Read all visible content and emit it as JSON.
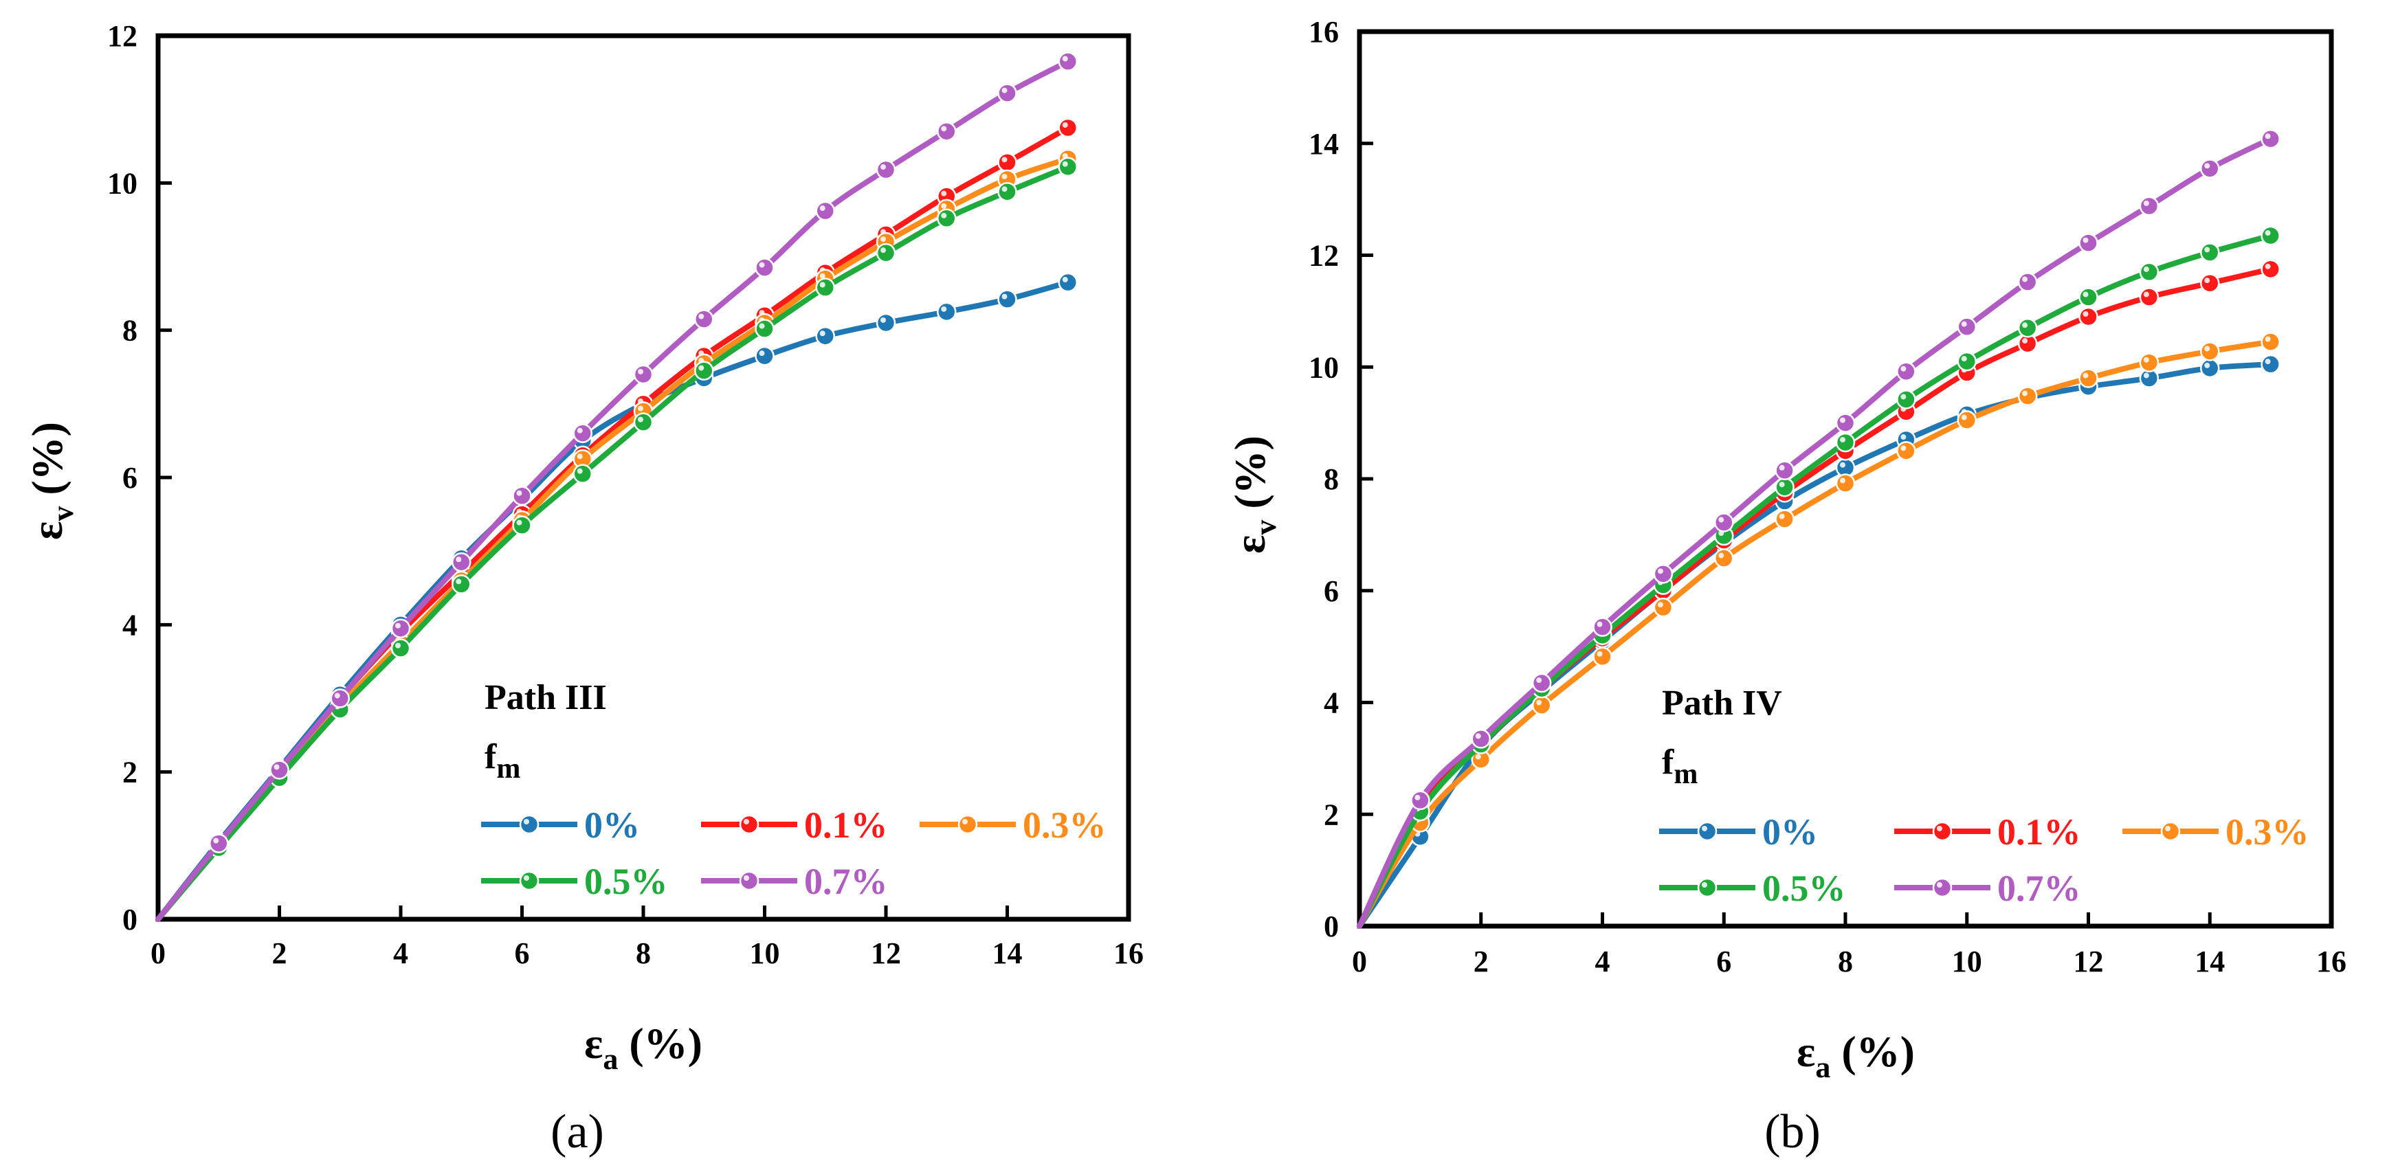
{
  "colors": {
    "s0": "#1f77b4",
    "s01": "#ff1a1a",
    "s03": "#ff8c1a",
    "s05": "#1fab3c",
    "s07": "#b05cc2"
  },
  "chart_data": [
    {
      "type": "line",
      "panel_label": "(a)",
      "title": "",
      "legend_title": "Path III",
      "legend_subtitle_base": "f",
      "legend_subtitle_sub": "m",
      "xlabel_base": "ε",
      "xlabel_sub": "a",
      "xlabel_unit": "(%)",
      "ylabel_base": "ε",
      "ylabel_sub": "v",
      "ylabel_unit": "(%)",
      "xlim": [
        0,
        16
      ],
      "ylim": [
        0,
        12
      ],
      "x_ticks": [
        "0",
        "2",
        "4",
        "6",
        "8",
        "10",
        "12",
        "14",
        "16"
      ],
      "y_ticks": [
        "0",
        "2",
        "4",
        "6",
        "8",
        "10",
        "12"
      ],
      "x": [
        0,
        1,
        2,
        3,
        4,
        5,
        6,
        7,
        8,
        9,
        10,
        11,
        12,
        13,
        14,
        15
      ],
      "series": [
        {
          "name": "0%",
          "color_key": "s0",
          "values": [
            0,
            1.05,
            2.05,
            3.05,
            4.0,
            4.9,
            5.7,
            6.5,
            7.0,
            7.35,
            7.65,
            7.92,
            8.1,
            8.25,
            8.42,
            8.65
          ]
        },
        {
          "name": "0.1%",
          "color_key": "s01",
          "values": [
            0,
            1.0,
            2.0,
            3.0,
            3.9,
            4.7,
            5.5,
            6.3,
            7.0,
            7.65,
            8.2,
            8.78,
            9.3,
            9.82,
            10.28,
            10.75
          ]
        },
        {
          "name": "0.3%",
          "color_key": "s03",
          "values": [
            0,
            0.98,
            1.95,
            2.9,
            3.75,
            4.6,
            5.42,
            6.25,
            6.9,
            7.55,
            8.1,
            8.7,
            9.2,
            9.65,
            10.05,
            10.33
          ]
        },
        {
          "name": "0.5%",
          "color_key": "s05",
          "values": [
            0,
            0.97,
            1.92,
            2.85,
            3.68,
            4.55,
            5.35,
            6.05,
            6.75,
            7.45,
            8.02,
            8.58,
            9.05,
            9.52,
            9.88,
            10.22
          ]
        },
        {
          "name": "0.7%",
          "color_key": "s07",
          "values": [
            0,
            1.03,
            2.03,
            3.0,
            3.95,
            4.85,
            5.75,
            6.6,
            7.4,
            8.15,
            8.85,
            9.62,
            10.18,
            10.7,
            11.22,
            11.65
          ]
        }
      ]
    },
    {
      "type": "line",
      "panel_label": "(b)",
      "title": "",
      "legend_title": "Path IV",
      "legend_subtitle_base": "f",
      "legend_subtitle_sub": "m",
      "xlabel_base": "ε",
      "xlabel_sub": "a",
      "xlabel_unit": "(%)",
      "ylabel_base": "ε",
      "ylabel_sub": "v",
      "ylabel_unit": "(%)",
      "xlim": [
        0,
        16
      ],
      "ylim": [
        0,
        16
      ],
      "x_ticks": [
        "0",
        "2",
        "4",
        "6",
        "8",
        "10",
        "12",
        "14",
        "16"
      ],
      "y_ticks": [
        "0",
        "2",
        "4",
        "6",
        "8",
        "10",
        "12",
        "14",
        "16"
      ],
      "x": [
        0,
        1,
        2,
        3,
        4,
        5,
        6,
        7,
        8,
        9,
        10,
        11,
        12,
        13,
        14,
        15
      ],
      "series": [
        {
          "name": "0%",
          "color_key": "s0",
          "values": [
            0,
            1.6,
            3.2,
            4.2,
            5.1,
            6.0,
            6.85,
            7.6,
            8.2,
            8.7,
            9.15,
            9.45,
            9.65,
            9.8,
            9.98,
            10.05
          ]
        },
        {
          "name": "0.1%",
          "color_key": "s01",
          "values": [
            0,
            2.15,
            3.25,
            4.25,
            5.15,
            6.0,
            6.9,
            7.75,
            8.5,
            9.2,
            9.9,
            10.42,
            10.9,
            11.25,
            11.5,
            11.75
          ]
        },
        {
          "name": "0.3%",
          "color_key": "s03",
          "values": [
            0,
            1.85,
            2.98,
            3.95,
            4.82,
            5.7,
            6.58,
            7.28,
            7.92,
            8.5,
            9.05,
            9.48,
            9.8,
            10.08,
            10.28,
            10.45
          ]
        },
        {
          "name": "0.5%",
          "color_key": "s05",
          "values": [
            0,
            2.05,
            3.25,
            4.25,
            5.2,
            6.1,
            6.98,
            7.85,
            8.65,
            9.42,
            10.1,
            10.7,
            11.25,
            11.7,
            12.05,
            12.35
          ]
        },
        {
          "name": "0.7%",
          "color_key": "s07",
          "values": [
            0,
            2.25,
            3.35,
            4.35,
            5.35,
            6.3,
            7.22,
            8.15,
            9.0,
            9.92,
            10.72,
            11.52,
            12.22,
            12.88,
            13.55,
            14.08
          ]
        }
      ]
    }
  ]
}
